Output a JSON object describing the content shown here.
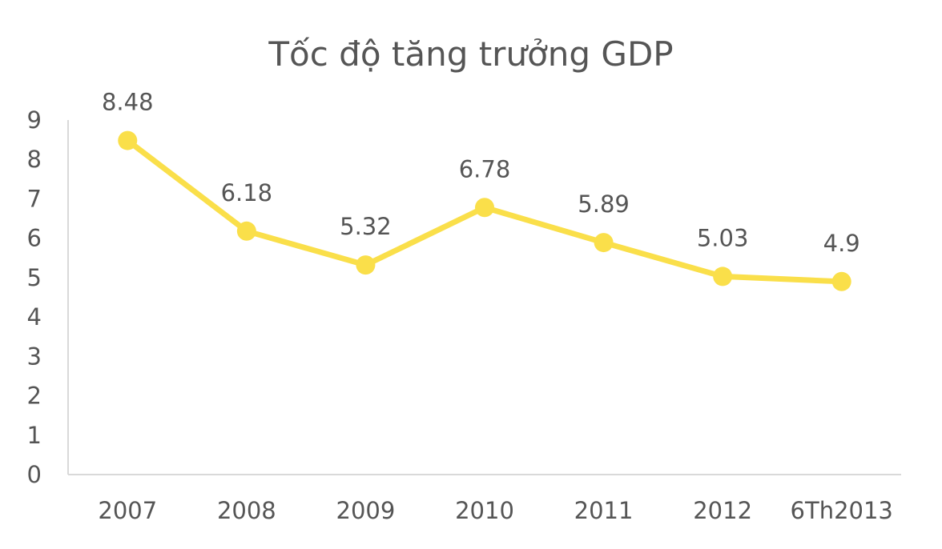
{
  "chart_data": {
    "type": "line",
    "title": "Tốc độ tăng trưởng GDP",
    "xlabel": "",
    "ylabel": "",
    "categories": [
      "2007",
      "2008",
      "2009",
      "2010",
      "2011",
      "2012",
      "6Th2013"
    ],
    "series": [
      {
        "values": [
          8.48,
          6.18,
          5.32,
          6.78,
          5.89,
          5.03,
          4.9
        ],
        "data_labels": [
          "8.48",
          "6.18",
          "5.32",
          "6.78",
          "5.89",
          "5.03",
          "4.9"
        ]
      }
    ],
    "ylim": [
      0,
      9
    ],
    "y_ticks": [
      "0",
      "1",
      "2",
      "3",
      "4",
      "5",
      "6",
      "7",
      "8",
      "9"
    ],
    "grid": false,
    "legend": "none",
    "colors": {
      "line": "#FADF4A",
      "text": "#555555",
      "axis": "#D9D9D9"
    }
  }
}
